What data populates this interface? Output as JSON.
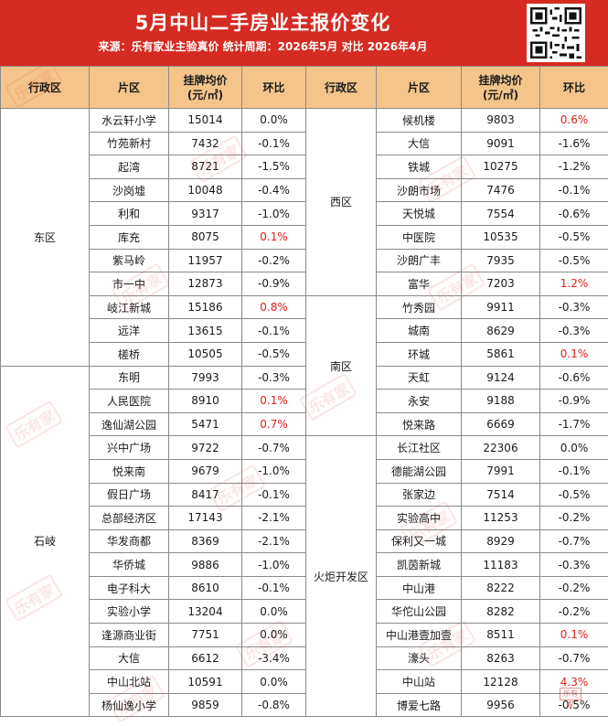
{
  "header": {
    "title": "5月中山二手房业主报价变化",
    "subtitle": "来源：乐有家业主验真价   统计周期：2026年5月 对比 2026年4月"
  },
  "columns": [
    "行政区",
    "片区",
    "挂牌均价\n(元/㎡)",
    "环比",
    "行政区",
    "片区",
    "挂牌均价\n(元/㎡)",
    "环比"
  ],
  "watermark": "乐有家",
  "accent_color": "#e0201a",
  "left_groups": [
    {
      "district": "东区",
      "rows": [
        {
          "area": "水云轩小学",
          "price": "15014",
          "change": "0.0%",
          "up": false
        },
        {
          "area": "竹苑新村",
          "price": "7432",
          "change": "-0.1%",
          "up": false
        },
        {
          "area": "起湾",
          "price": "8721",
          "change": "-1.5%",
          "up": false
        },
        {
          "area": "沙岗墟",
          "price": "10048",
          "change": "-0.4%",
          "up": false
        },
        {
          "area": "利和",
          "price": "9317",
          "change": "-1.0%",
          "up": false
        },
        {
          "area": "库充",
          "price": "8075",
          "change": "0.1%",
          "up": true
        },
        {
          "area": "紫马岭",
          "price": "11957",
          "change": "-0.2%",
          "up": false
        },
        {
          "area": "市一中",
          "price": "12873",
          "change": "-0.9%",
          "up": false
        },
        {
          "area": "岐江新城",
          "price": "15186",
          "change": "0.8%",
          "up": true
        },
        {
          "area": "远洋",
          "price": "13615",
          "change": "-0.1%",
          "up": false
        },
        {
          "area": "槎桥",
          "price": "10505",
          "change": "-0.5%",
          "up": false
        }
      ]
    },
    {
      "district": "石岐",
      "rows": [
        {
          "area": "东明",
          "price": "7993",
          "change": "-0.3%",
          "up": false
        },
        {
          "area": "人民医院",
          "price": "8910",
          "change": "0.1%",
          "up": true
        },
        {
          "area": "逸仙湖公园",
          "price": "5471",
          "change": "0.7%",
          "up": true
        },
        {
          "area": "兴中广场",
          "price": "9722",
          "change": "-0.7%",
          "up": false
        },
        {
          "area": "悦来南",
          "price": "9679",
          "change": "-1.0%",
          "up": false
        },
        {
          "area": "假日广场",
          "price": "8417",
          "change": "-0.1%",
          "up": false
        },
        {
          "area": "总部经济区",
          "price": "17143",
          "change": "-2.1%",
          "up": false
        },
        {
          "area": "华发商都",
          "price": "8369",
          "change": "-2.1%",
          "up": false
        },
        {
          "area": "华侨城",
          "price": "9886",
          "change": "-1.0%",
          "up": false
        },
        {
          "area": "电子科大",
          "price": "8610",
          "change": "-0.1%",
          "up": false
        },
        {
          "area": "实验小学",
          "price": "13204",
          "change": "0.0%",
          "up": false
        },
        {
          "area": "逢源商业街",
          "price": "7751",
          "change": "0.0%",
          "up": false
        },
        {
          "area": "大信",
          "price": "6612",
          "change": "-3.4%",
          "up": false
        },
        {
          "area": "中山北站",
          "price": "10591",
          "change": "0.0%",
          "up": false
        },
        {
          "area": "杨仙逸小学",
          "price": "9859",
          "change": "-0.8%",
          "up": false
        }
      ]
    }
  ],
  "right_groups": [
    {
      "district": "西区",
      "rows": [
        {
          "area": "候机楼",
          "price": "9803",
          "change": "0.6%",
          "up": true
        },
        {
          "area": "大信",
          "price": "9091",
          "change": "-1.6%",
          "up": false
        },
        {
          "area": "铁城",
          "price": "10275",
          "change": "-1.2%",
          "up": false
        },
        {
          "area": "沙朗市场",
          "price": "7476",
          "change": "-0.1%",
          "up": false
        },
        {
          "area": "天悦城",
          "price": "7554",
          "change": "-0.6%",
          "up": false
        },
        {
          "area": "中医院",
          "price": "10535",
          "change": "-0.5%",
          "up": false
        },
        {
          "area": "沙朗广丰",
          "price": "7935",
          "change": "-0.5%",
          "up": false
        },
        {
          "area": "富华",
          "price": "7203",
          "change": "1.2%",
          "up": true
        }
      ]
    },
    {
      "district": "南区",
      "rows": [
        {
          "area": "竹秀园",
          "price": "9911",
          "change": "-0.3%",
          "up": false
        },
        {
          "area": "城南",
          "price": "8629",
          "change": "-0.3%",
          "up": false
        },
        {
          "area": "环城",
          "price": "5861",
          "change": "0.1%",
          "up": true
        },
        {
          "area": "天虹",
          "price": "9124",
          "change": "-0.6%",
          "up": false
        },
        {
          "area": "永安",
          "price": "9188",
          "change": "-0.9%",
          "up": false
        },
        {
          "area": "悦来路",
          "price": "6669",
          "change": "-1.7%",
          "up": false
        }
      ]
    },
    {
      "district": "火炬开发区",
      "rows": [
        {
          "area": "长江社区",
          "price": "22306",
          "change": "0.0%",
          "up": false
        },
        {
          "area": "德能湖公园",
          "price": "7991",
          "change": "-0.1%",
          "up": false
        },
        {
          "area": "张家边",
          "price": "7514",
          "change": "-0.5%",
          "up": false
        },
        {
          "area": "实验高中",
          "price": "11253",
          "change": "-0.2%",
          "up": false
        },
        {
          "area": "保利又一城",
          "price": "8929",
          "change": "-0.7%",
          "up": false
        },
        {
          "area": "凯茵新城",
          "price": "11183",
          "change": "-0.3%",
          "up": false
        },
        {
          "area": "中山港",
          "price": "8222",
          "change": "-0.2%",
          "up": false
        },
        {
          "area": "华佗山公园",
          "price": "8282",
          "change": "-0.2%",
          "up": false
        },
        {
          "area": "中山港壹加壹",
          "price": "8511",
          "change": "0.1%",
          "up": true
        },
        {
          "area": "濠头",
          "price": "8263",
          "change": "-0.7%",
          "up": false
        },
        {
          "area": "中山站",
          "price": "12128",
          "change": "4.3%",
          "up": true
        },
        {
          "area": "博爱七路",
          "price": "9956",
          "change": "-0.5%",
          "up": false
        }
      ]
    }
  ]
}
